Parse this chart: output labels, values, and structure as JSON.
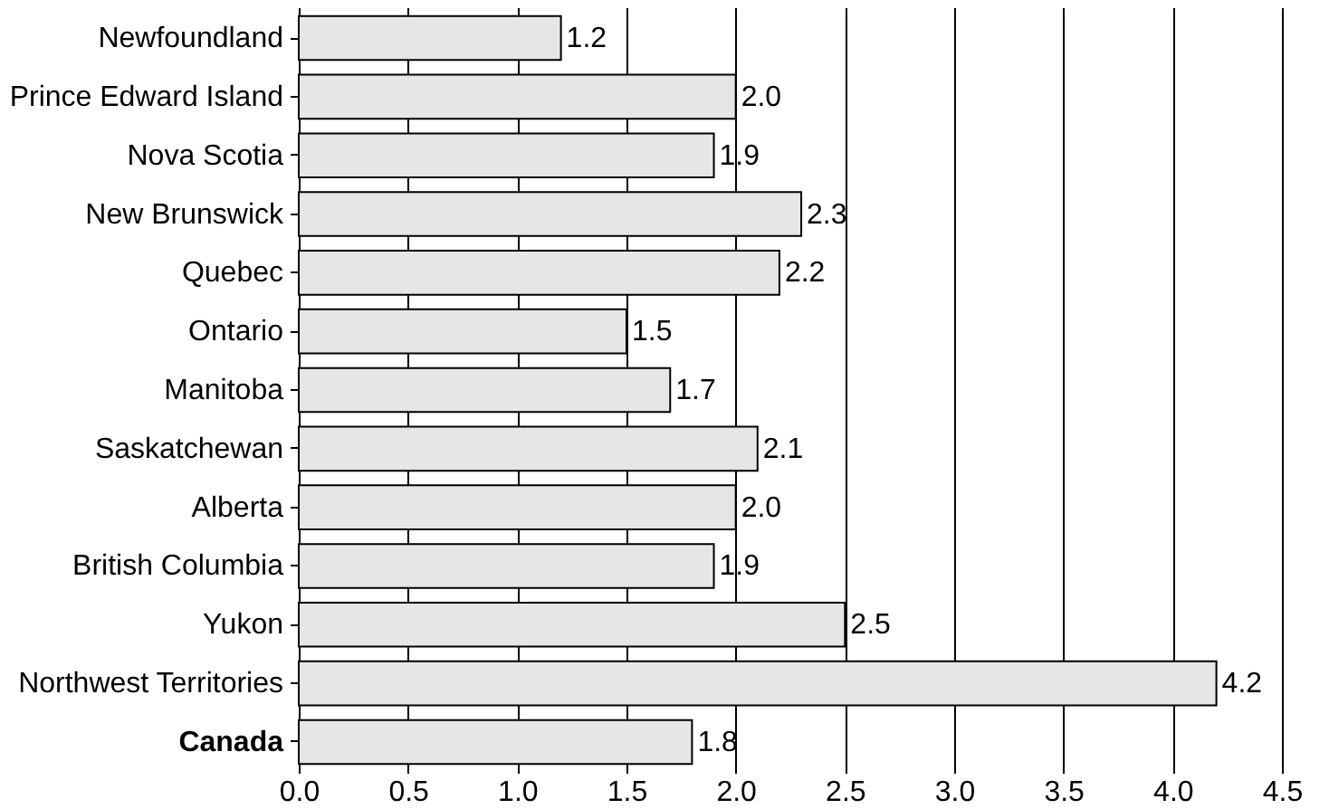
{
  "chart_data": {
    "type": "bar",
    "orientation": "horizontal",
    "categories": [
      "Newfoundland",
      "Prince Edward Island",
      "Nova Scotia",
      "New Brunswick",
      "Quebec",
      "Ontario",
      "Manitoba",
      "Saskatchewan",
      "Alberta",
      "British Columbia",
      "Yukon",
      "Northwest Territories",
      "Canada"
    ],
    "values": [
      1.2,
      2.0,
      1.9,
      2.3,
      2.2,
      1.5,
      1.7,
      2.1,
      2.0,
      1.9,
      2.5,
      4.2,
      1.8
    ],
    "value_labels": [
      "1.2",
      "2.0",
      "1.9",
      "2.3",
      "2.2",
      "1.5",
      "1.7",
      "2.1",
      "2.0",
      "1.9",
      "2.5",
      "4.2",
      "1.8"
    ],
    "color": "#e6e6e6",
    "xlim": [
      0,
      4.5
    ],
    "xticks": [
      {
        "value": 0,
        "label": "0.0"
      },
      0.5,
      {
        "value": 1,
        "label": "1.0"
      },
      1.5,
      {
        "value": 2,
        "label": "2.0"
      },
      2.5,
      {
        "value": 3,
        "label": "3.0"
      },
      3.5,
      {
        "value": 4,
        "label": "4.0"
      },
      4.5
    ],
    "grid": "x"
  }
}
